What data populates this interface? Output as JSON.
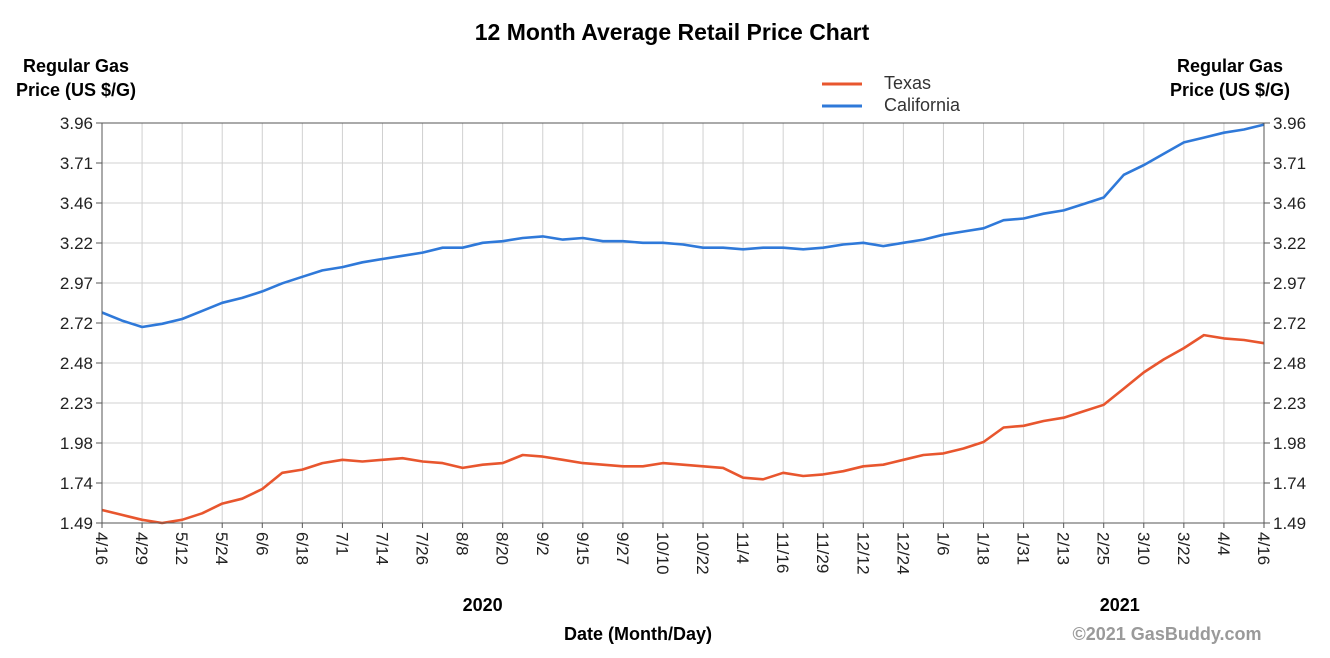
{
  "chart_data": {
    "type": "line",
    "title": "12 Month Average Retail Price Chart",
    "ylabel_left": [
      "Regular Gas",
      "Price (US $/G)"
    ],
    "ylabel_right": [
      "Regular Gas",
      "Price (US $/G)"
    ],
    "xlabel": "Date (Month/Day)",
    "yticks": [
      "3.96",
      "3.71",
      "3.46",
      "3.22",
      "2.97",
      "2.72",
      "2.48",
      "2.23",
      "1.98",
      "1.74",
      "1.49"
    ],
    "ylim": [
      1.49,
      3.96
    ],
    "x_labels": [
      "4/16",
      "4/29",
      "5/12",
      "5/24",
      "6/6",
      "6/18",
      "7/1",
      "7/14",
      "7/26",
      "8/8",
      "8/20",
      "9/2",
      "9/15",
      "9/27",
      "10/10",
      "10/22",
      "11/4",
      "11/16",
      "11/29",
      "12/12",
      "12/24",
      "1/6",
      "1/18",
      "1/31",
      "2/13",
      "2/25",
      "3/10",
      "3/22",
      "4/4",
      "4/16"
    ],
    "years": [
      {
        "label": "2020",
        "at_index": 9
      },
      {
        "label": "2021",
        "at_index": 24.9
      }
    ],
    "grid": true,
    "legend_position": "top-right",
    "credit": "©2021 GasBuddy.com",
    "series": [
      {
        "name": "Texas",
        "color": "#e8562e",
        "x": [
          0,
          0.5,
          1,
          1.5,
          2,
          2.5,
          3,
          3.5,
          4,
          4.5,
          5,
          5.5,
          6,
          6.5,
          7,
          7.5,
          8,
          8.5,
          9,
          9.5,
          10,
          10.5,
          11,
          11.5,
          12,
          12.5,
          13,
          13.5,
          14,
          14.5,
          15,
          15.5,
          16,
          16.5,
          17,
          17.5,
          18,
          18.5,
          19,
          19.5,
          20,
          20.5,
          21,
          21.5,
          22,
          22.5,
          23,
          23.5,
          24,
          24.5,
          25,
          25.5,
          26,
          26.5,
          27,
          27.5,
          28,
          28.5,
          29
        ],
        "values": [
          1.57,
          1.54,
          1.51,
          1.49,
          1.51,
          1.55,
          1.61,
          1.64,
          1.7,
          1.8,
          1.82,
          1.86,
          1.88,
          1.87,
          1.88,
          1.89,
          1.87,
          1.86,
          1.83,
          1.85,
          1.86,
          1.91,
          1.9,
          1.88,
          1.86,
          1.85,
          1.84,
          1.84,
          1.86,
          1.85,
          1.84,
          1.83,
          1.77,
          1.76,
          1.8,
          1.78,
          1.79,
          1.81,
          1.84,
          1.85,
          1.88,
          1.91,
          1.92,
          1.95,
          1.99,
          2.08,
          2.09,
          2.12,
          2.14,
          2.18,
          2.22,
          2.32,
          2.42,
          2.5,
          2.57,
          2.65,
          2.63,
          2.62,
          2.6
        ]
      },
      {
        "name": "California",
        "color": "#2f79d9",
        "x": [
          0,
          0.5,
          1,
          1.5,
          2,
          2.5,
          3,
          3.5,
          4,
          4.5,
          5,
          5.5,
          6,
          6.5,
          7,
          7.5,
          8,
          8.5,
          9,
          9.5,
          10,
          10.5,
          11,
          11.5,
          12,
          12.5,
          13,
          13.5,
          14,
          14.5,
          15,
          15.5,
          16,
          16.5,
          17,
          17.5,
          18,
          18.5,
          19,
          19.5,
          20,
          20.5,
          21,
          21.5,
          22,
          22.5,
          23,
          23.5,
          24,
          24.5,
          25,
          25.5,
          26,
          26.5,
          27,
          27.5,
          28,
          28.5,
          29
        ],
        "values": [
          2.79,
          2.74,
          2.7,
          2.72,
          2.75,
          2.8,
          2.85,
          2.88,
          2.92,
          2.97,
          3.01,
          3.05,
          3.07,
          3.1,
          3.12,
          3.14,
          3.16,
          3.19,
          3.19,
          3.22,
          3.23,
          3.25,
          3.26,
          3.24,
          3.25,
          3.23,
          3.23,
          3.22,
          3.22,
          3.21,
          3.19,
          3.19,
          3.18,
          3.19,
          3.19,
          3.18,
          3.19,
          3.21,
          3.22,
          3.2,
          3.22,
          3.24,
          3.27,
          3.29,
          3.31,
          3.36,
          3.37,
          3.4,
          3.42,
          3.46,
          3.5,
          3.64,
          3.7,
          3.77,
          3.84,
          3.87,
          3.9,
          3.92,
          3.95
        ]
      }
    ]
  }
}
